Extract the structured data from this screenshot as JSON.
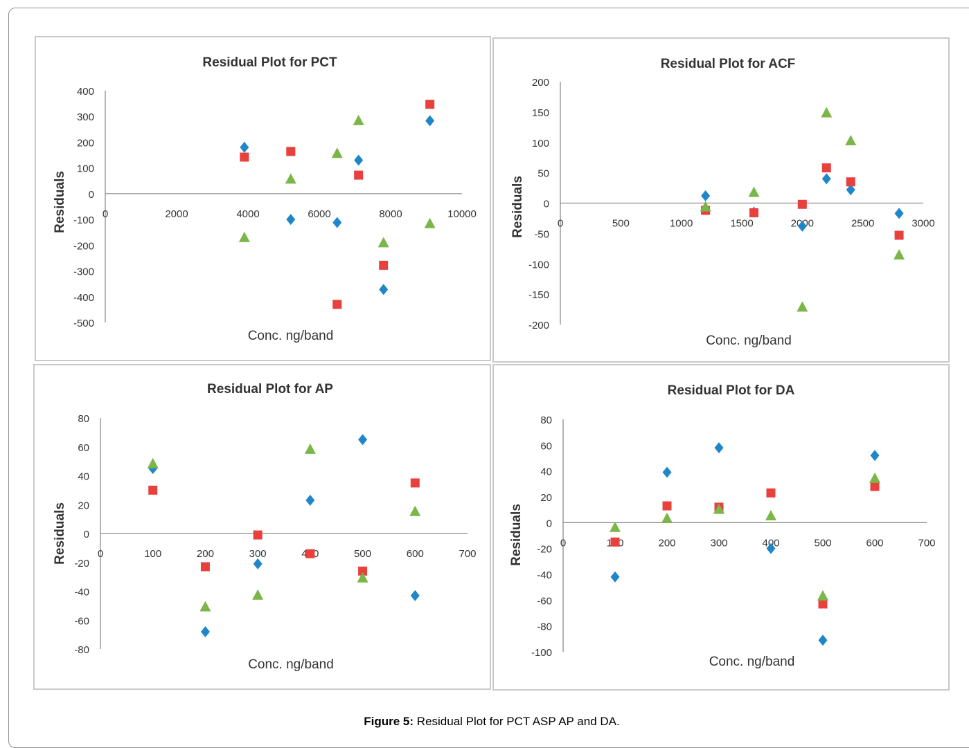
{
  "caption": {
    "label": "Figure 5:",
    "text": " Residual Plot for PCT ASP AP and DA."
  },
  "colors": {
    "diamond": "#1f86c9",
    "square": "#e8403c",
    "triangle": "#7ab648",
    "axis": "#8c8c8c",
    "text": "#333333"
  },
  "chart_data": [
    {
      "type": "scatter",
      "title": "Residual Plot for PCT",
      "xlabel": "Conc. ng/band",
      "ylabel": "Residuals",
      "xlim": [
        0,
        10000
      ],
      "ylim": [
        -500,
        400
      ],
      "xticks": [
        0,
        2000,
        4000,
        6000,
        8000,
        10000
      ],
      "yticks": [
        -500,
        -400,
        -300,
        -200,
        -100,
        0,
        100,
        200,
        300,
        400
      ],
      "grid": false,
      "legend": "none",
      "series": [
        {
          "marker": "diamond",
          "points": [
            [
              3900,
              180
            ],
            [
              5200,
              -100
            ],
            [
              6500,
              -112
            ],
            [
              7100,
              130
            ],
            [
              7800,
              -372
            ],
            [
              9100,
              283
            ]
          ]
        },
        {
          "marker": "square",
          "points": [
            [
              3900,
              142
            ],
            [
              5200,
              164
            ],
            [
              6500,
              -430
            ],
            [
              7100,
              72
            ],
            [
              7800,
              -278
            ],
            [
              9100,
              347
            ]
          ]
        },
        {
          "marker": "triangle",
          "points": [
            [
              3900,
              -172
            ],
            [
              5200,
              55
            ],
            [
              6500,
              155
            ],
            [
              7100,
              282
            ],
            [
              7800,
              -192
            ],
            [
              9100,
              -118
            ]
          ]
        }
      ]
    },
    {
      "type": "scatter",
      "title": "Residual Plot for ACF",
      "xlabel": "Conc. ng/band",
      "ylabel": "Residuals",
      "xlim": [
        0,
        3000
      ],
      "ylim": [
        -200,
        200
      ],
      "xticks": [
        0,
        500,
        1000,
        1500,
        2000,
        2500,
        3000
      ],
      "yticks": [
        -200,
        -150,
        -100,
        -50,
        0,
        50,
        100,
        150,
        200
      ],
      "grid": false,
      "legend": "none",
      "series": [
        {
          "marker": "diamond",
          "points": [
            [
              1200,
              12
            ],
            [
              1600,
              -15
            ],
            [
              2000,
              -38
            ],
            [
              2200,
              40
            ],
            [
              2400,
              22
            ],
            [
              2800,
              -17
            ]
          ]
        },
        {
          "marker": "square",
          "points": [
            [
              1200,
              -12
            ],
            [
              1600,
              -16
            ],
            [
              2000,
              -2
            ],
            [
              2200,
              58
            ],
            [
              2400,
              35
            ],
            [
              2800,
              -53
            ]
          ]
        },
        {
          "marker": "triangle",
          "points": [
            [
              1200,
              -7
            ],
            [
              1600,
              17
            ],
            [
              2000,
              -172
            ],
            [
              2200,
              148
            ],
            [
              2400,
              102
            ],
            [
              2800,
              -86
            ]
          ]
        }
      ]
    },
    {
      "type": "scatter",
      "title": "Residual Plot for AP",
      "xlabel": "Conc. ng/band",
      "ylabel": "Residuals",
      "xlim": [
        0,
        700
      ],
      "ylim": [
        -80,
        80
      ],
      "xticks": [
        0,
        100,
        200,
        300,
        400,
        500,
        600,
        700
      ],
      "yticks": [
        -80,
        -60,
        -40,
        -20,
        0,
        20,
        40,
        60,
        80
      ],
      "grid": false,
      "legend": "none",
      "series": [
        {
          "marker": "diamond",
          "points": [
            [
              100,
              45
            ],
            [
              200,
              -68
            ],
            [
              300,
              -21
            ],
            [
              400,
              23
            ],
            [
              500,
              65
            ],
            [
              600,
              -43
            ]
          ]
        },
        {
          "marker": "square",
          "points": [
            [
              100,
              30
            ],
            [
              200,
              -23
            ],
            [
              300,
              -1
            ],
            [
              400,
              -14
            ],
            [
              500,
              -26
            ],
            [
              600,
              35
            ]
          ]
        },
        {
          "marker": "triangle",
          "points": [
            [
              100,
              48
            ],
            [
              200,
              -51
            ],
            [
              300,
              -43
            ],
            [
              400,
              58
            ],
            [
              500,
              -31
            ],
            [
              600,
              15
            ]
          ]
        }
      ]
    },
    {
      "type": "scatter",
      "title": "Residual Plot for DA",
      "xlabel": "Conc. ng/band",
      "ylabel": "Residuals",
      "xlim": [
        0,
        700
      ],
      "ylim": [
        -100,
        80
      ],
      "xticks": [
        0,
        100,
        200,
        300,
        400,
        500,
        600,
        700
      ],
      "yticks": [
        -100,
        -80,
        -60,
        -40,
        -20,
        0,
        20,
        40,
        60,
        80
      ],
      "grid": false,
      "legend": "none",
      "series": [
        {
          "marker": "diamond",
          "points": [
            [
              100,
              -42
            ],
            [
              200,
              39
            ],
            [
              300,
              58
            ],
            [
              400,
              -20
            ],
            [
              500,
              -91
            ],
            [
              600,
              52
            ]
          ]
        },
        {
          "marker": "square",
          "points": [
            [
              100,
              -15
            ],
            [
              200,
              13
            ],
            [
              300,
              12
            ],
            [
              400,
              23
            ],
            [
              500,
              -63
            ],
            [
              600,
              28
            ]
          ]
        },
        {
          "marker": "triangle",
          "points": [
            [
              100,
              -4
            ],
            [
              200,
              3
            ],
            [
              300,
              10
            ],
            [
              400,
              5
            ],
            [
              500,
              -57
            ],
            [
              600,
              34
            ]
          ]
        }
      ]
    }
  ]
}
